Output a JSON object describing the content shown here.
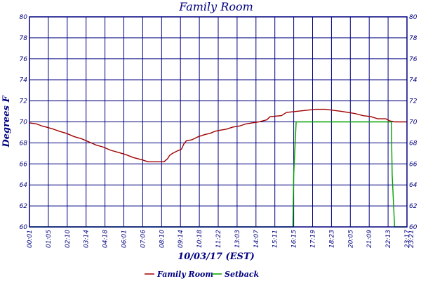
{
  "chart_data": {
    "type": "line",
    "title": "Family Room",
    "xlabel": "10/03/17 (EST)",
    "ylabel": "Degrees F",
    "ylim": [
      60,
      80
    ],
    "yticks": [
      60,
      62,
      64,
      66,
      68,
      70,
      72,
      74,
      76,
      78,
      80
    ],
    "xlim": [
      1,
      2321
    ],
    "xtick_labels": [
      "00:01",
      "01:05",
      "02:10",
      "03:14",
      "04:18",
      "06:01",
      "07:06",
      "08:10",
      "09:14",
      "10:18",
      "11:22",
      "13:03",
      "14:07",
      "15:11",
      "16:15",
      "17:19",
      "18:23",
      "20:05",
      "21:09",
      "22:13",
      "23:17",
      "23:21"
    ],
    "grid": true,
    "legend_position": "bottom-center",
    "colors": {
      "axis": "#000080",
      "family_room": "#a00000",
      "setback": "#00a000"
    },
    "series": [
      {
        "name": "Family Room",
        "color": "#a00000",
        "points": [
          [
            1,
            69.9
          ],
          [
            45,
            69.8
          ],
          [
            80,
            69.6
          ],
          [
            105,
            69.5
          ],
          [
            150,
            69.3
          ],
          [
            185,
            69.1
          ],
          [
            230,
            68.9
          ],
          [
            275,
            68.6
          ],
          [
            320,
            68.4
          ],
          [
            365,
            68.1
          ],
          [
            410,
            67.8
          ],
          [
            455,
            67.6
          ],
          [
            500,
            67.3
          ],
          [
            545,
            67.1
          ],
          [
            590,
            66.9
          ],
          [
            640,
            66.6
          ],
          [
            690,
            66.4
          ],
          [
            730,
            66.2
          ],
          [
            780,
            66.2
          ],
          [
            828,
            66.2
          ],
          [
            835,
            66.3
          ],
          [
            850,
            66.5
          ],
          [
            862,
            66.8
          ],
          [
            880,
            67.0
          ],
          [
            905,
            67.2
          ],
          [
            935,
            67.4
          ],
          [
            950,
            67.9
          ],
          [
            965,
            68.2
          ],
          [
            1000,
            68.3
          ],
          [
            1040,
            68.6
          ],
          [
            1080,
            68.8
          ],
          [
            1110,
            68.9
          ],
          [
            1140,
            69.1
          ],
          [
            1170,
            69.2
          ],
          [
            1210,
            69.3
          ],
          [
            1250,
            69.5
          ],
          [
            1290,
            69.6
          ],
          [
            1330,
            69.8
          ],
          [
            1370,
            69.9
          ],
          [
            1410,
            70.0
          ],
          [
            1460,
            70.2
          ],
          [
            1480,
            70.5
          ],
          [
            1550,
            70.6
          ],
          [
            1580,
            70.9
          ],
          [
            1640,
            71.0
          ],
          [
            1700,
            71.1
          ],
          [
            1760,
            71.2
          ],
          [
            1820,
            71.2
          ],
          [
            1870,
            71.1
          ],
          [
            1920,
            71.0
          ],
          [
            1960,
            70.9
          ],
          [
            2000,
            70.8
          ],
          [
            2050,
            70.6
          ],
          [
            2100,
            70.5
          ],
          [
            2140,
            70.3
          ],
          [
            2190,
            70.3
          ],
          [
            2215,
            70.1
          ],
          [
            2245,
            70.0
          ],
          [
            2321,
            70.0
          ]
        ]
      },
      {
        "name": "Setback",
        "color": "#00a000",
        "points": [
          [
            1,
            60
          ],
          [
            1620,
            60
          ],
          [
            1625,
            65
          ],
          [
            1640,
            70
          ],
          [
            2225,
            70
          ],
          [
            2230,
            65
          ],
          [
            2245,
            60
          ],
          [
            2321,
            60
          ]
        ]
      }
    ]
  }
}
